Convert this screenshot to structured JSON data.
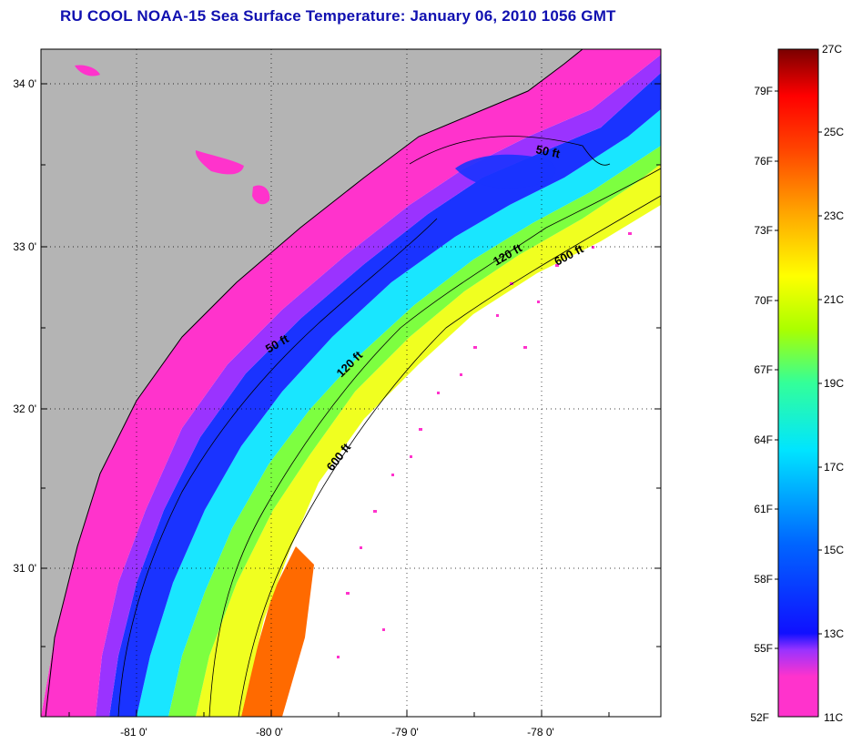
{
  "title": "RU COOL  NOAA-15  Sea Surface Temperature:  January 06, 2010 1056 GMT",
  "map": {
    "lat_ticks": [
      "34 0'",
      "33 0'",
      "32 0'",
      "31 0'"
    ],
    "lon_ticks": [
      "-81 0'",
      "-80 0'",
      "-79 0'",
      "-78 0'"
    ],
    "contours": [
      "50 ft",
      "50 ft",
      "120 ft",
      "120 ft",
      "600 ft",
      "600 ft"
    ],
    "colors": {
      "land": "#b4b4b4",
      "no_data": "#ffffff",
      "cold": "#ff33cc",
      "warm": "#ff5a00"
    }
  },
  "colorbar": {
    "fahrenheit": [
      "79F",
      "76F",
      "73F",
      "70F",
      "67F",
      "64F",
      "61F",
      "58F",
      "55F",
      "52F"
    ],
    "celsius": [
      "27C",
      "25C",
      "23C",
      "21C",
      "19C",
      "17C",
      "15C",
      "13C",
      "11C"
    ]
  }
}
